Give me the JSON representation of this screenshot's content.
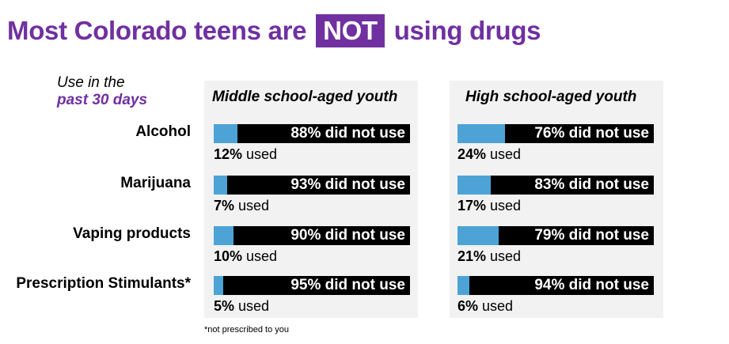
{
  "title": {
    "before": "Most Colorado teens are",
    "highlight": "NOT",
    "after": "using drugs"
  },
  "legend": {
    "line1": "Use in the",
    "line2": "past 30 days"
  },
  "footnote": "*not prescribed to you",
  "colors": {
    "accent": "#7030a0",
    "used": "#4da3d6",
    "not_used": "#000000",
    "panel": "#f2f2f2"
  },
  "used_suffix": " used",
  "not_used_suffix": " did not use",
  "chart_data": {
    "type": "bar",
    "stacked": true,
    "orientation": "horizontal",
    "categories": [
      "Alcohol",
      "Marijuana",
      "Vaping products",
      "Prescription Stimulants*"
    ],
    "groups": [
      {
        "name": "Middle school-aged youth",
        "series": [
          {
            "name": "used",
            "values": [
              12,
              7,
              10,
              5
            ]
          },
          {
            "name": "did not use",
            "values": [
              88,
              93,
              90,
              95
            ]
          }
        ]
      },
      {
        "name": "High school-aged youth",
        "series": [
          {
            "name": "used",
            "values": [
              24,
              17,
              21,
              6
            ]
          },
          {
            "name": "did not use",
            "values": [
              76,
              83,
              79,
              94
            ]
          }
        ]
      }
    ],
    "unit": "%",
    "xlim": [
      0,
      100
    ]
  }
}
